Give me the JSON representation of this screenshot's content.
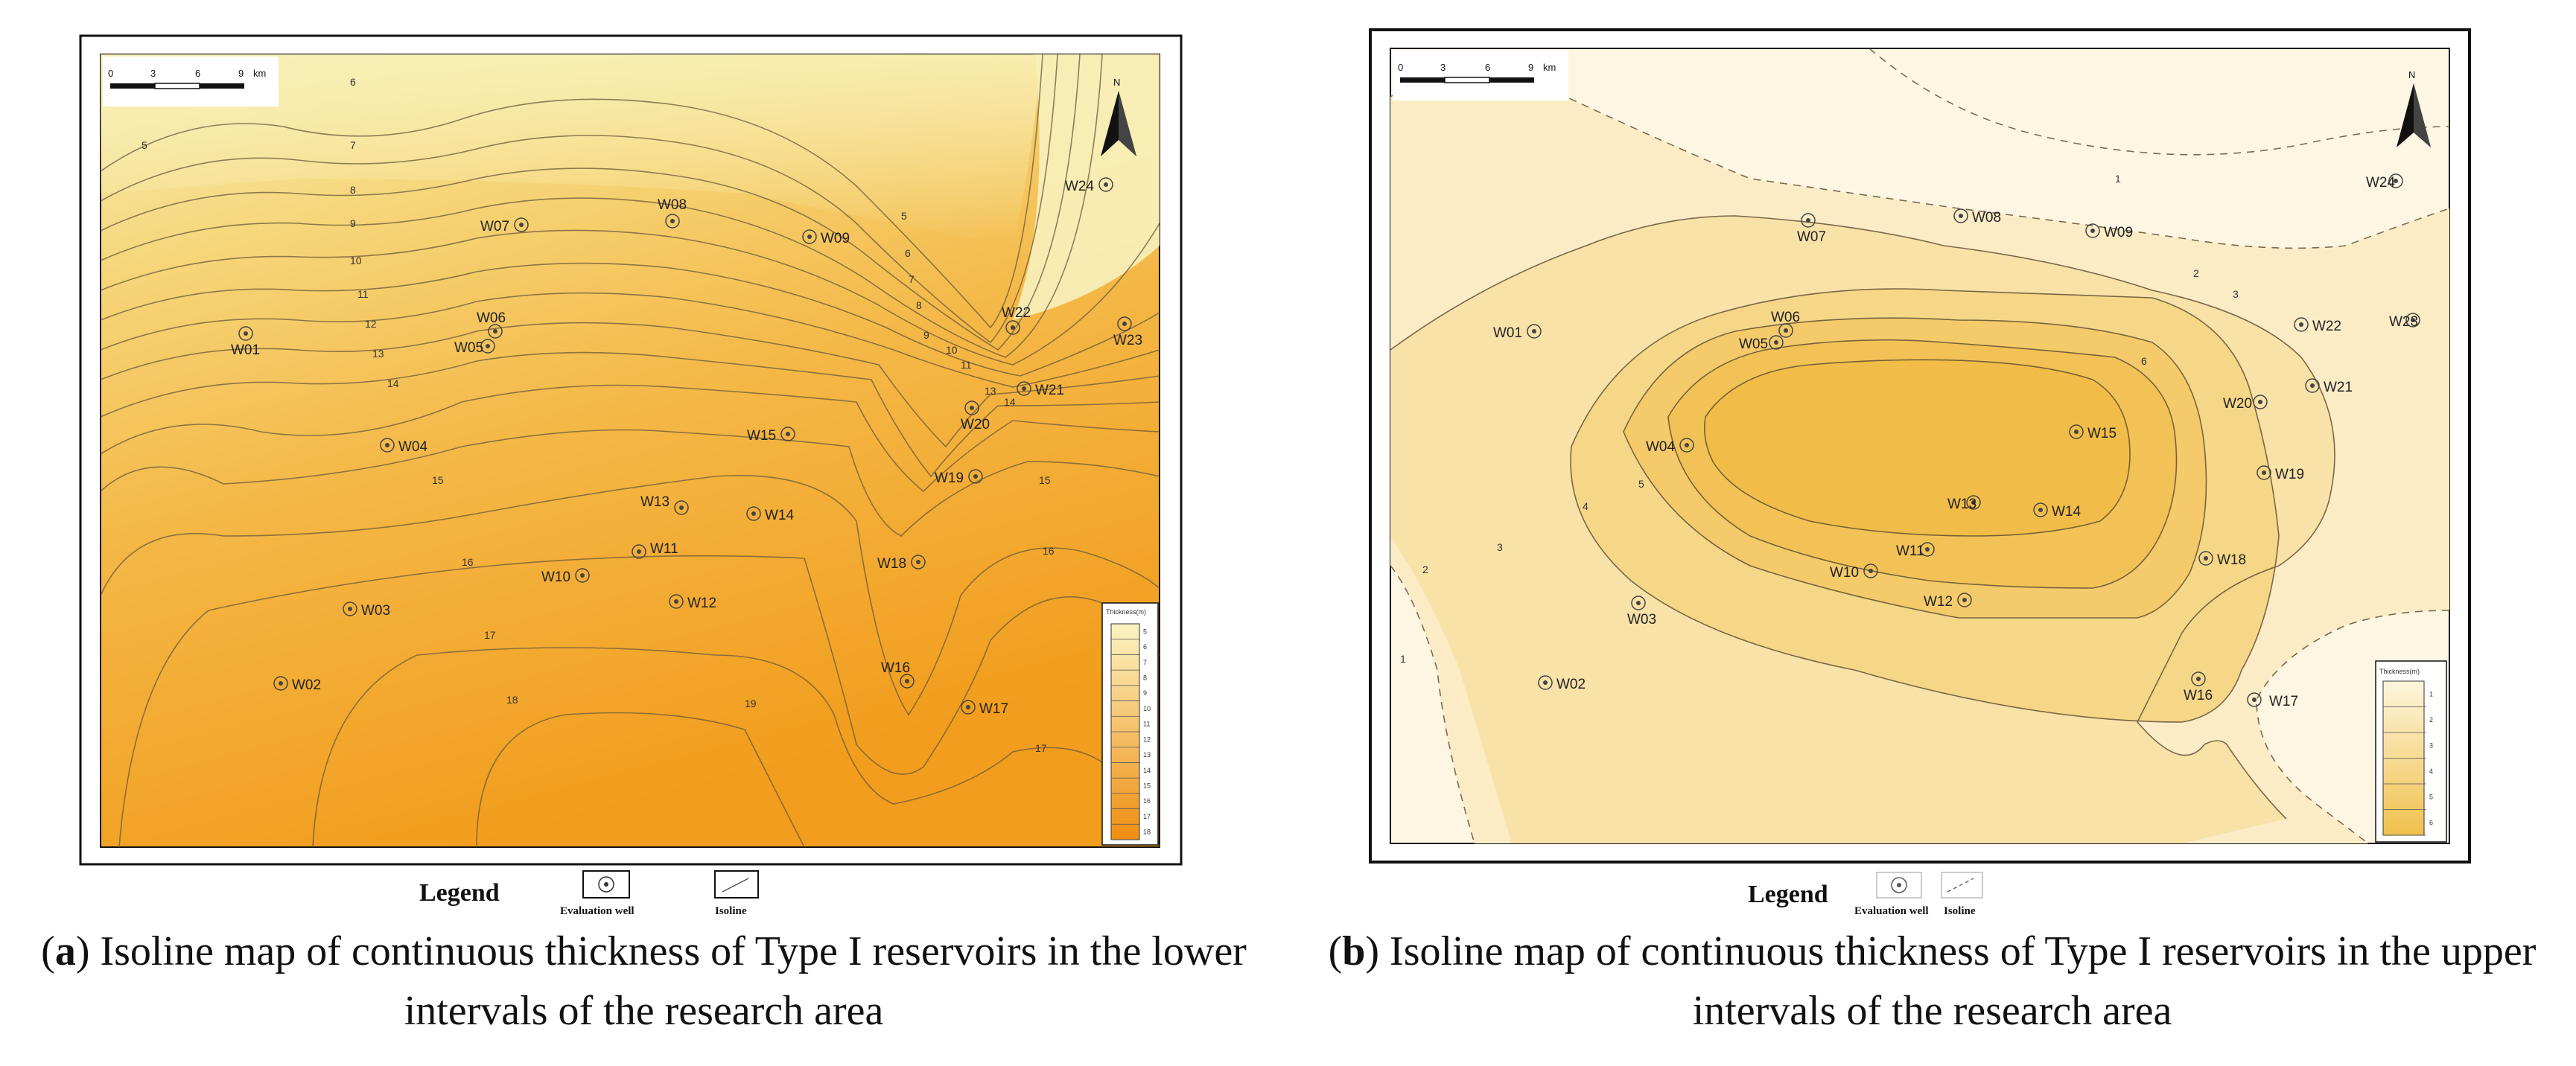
{
  "panels": [
    {
      "id": "a",
      "caption_letter": "a",
      "caption_text": ") Isoline map of continuous thickness of Type I reservoirs in the lower intervals of the research area",
      "caption_prefix": "(",
      "north": "N",
      "scale": [
        "0",
        "3",
        "6",
        "9",
        "km"
      ],
      "colorbar_title": "Thickness(m)",
      "colorbar_ticks": [
        "5",
        "6",
        "7",
        "8",
        "9",
        "10",
        "11",
        "12",
        "13",
        "14",
        "15",
        "16",
        "17",
        "18"
      ],
      "legend": {
        "title": "Legend",
        "well": "Evaluation well",
        "isoline": "Isoline"
      },
      "isoline_labels": [
        "5",
        "6",
        "7",
        "8",
        "9",
        "10",
        "11",
        "12",
        "13",
        "14",
        "15",
        "16",
        "17",
        "18",
        "19",
        "5",
        "6",
        "7",
        "8",
        "9",
        "10",
        "11",
        "13",
        "14",
        "15",
        "16",
        "17"
      ],
      "wells": [
        {
          "name": "W01"
        },
        {
          "name": "W02"
        },
        {
          "name": "W03"
        },
        {
          "name": "W04"
        },
        {
          "name": "W05"
        },
        {
          "name": "W06"
        },
        {
          "name": "W07"
        },
        {
          "name": "W08"
        },
        {
          "name": "W09"
        },
        {
          "name": "W10"
        },
        {
          "name": "W11"
        },
        {
          "name": "W12"
        },
        {
          "name": "W13"
        },
        {
          "name": "W14"
        },
        {
          "name": "W15"
        },
        {
          "name": "W16"
        },
        {
          "name": "W17"
        },
        {
          "name": "W18"
        },
        {
          "name": "W19"
        },
        {
          "name": "W20"
        },
        {
          "name": "W21"
        },
        {
          "name": "W22"
        },
        {
          "name": "W23"
        },
        {
          "name": "W24"
        }
      ]
    },
    {
      "id": "b",
      "caption_letter": "b",
      "caption_text": ") Isoline map of continuous thickness of Type I reservoirs in the upper intervals of the research area",
      "caption_prefix": "(",
      "north": "N",
      "scale": [
        "0",
        "3",
        "6",
        "9",
        "km"
      ],
      "colorbar_title": "Thickness(m)",
      "colorbar_ticks": [
        "1",
        "2",
        "3",
        "4",
        "5",
        "6"
      ],
      "legend": {
        "title": "Legend",
        "well": "Evaluation well",
        "isoline": "Isoline"
      },
      "isoline_labels": [
        "1",
        "2",
        "3",
        "4",
        "5",
        "6",
        "1",
        "2",
        "3"
      ],
      "wells": [
        {
          "name": "W01"
        },
        {
          "name": "W02"
        },
        {
          "name": "W03"
        },
        {
          "name": "W04"
        },
        {
          "name": "W05"
        },
        {
          "name": "W06"
        },
        {
          "name": "W07"
        },
        {
          "name": "W08"
        },
        {
          "name": "W09"
        },
        {
          "name": "W10"
        },
        {
          "name": "W11"
        },
        {
          "name": "W12"
        },
        {
          "name": "W13"
        },
        {
          "name": "W14"
        },
        {
          "name": "W15"
        },
        {
          "name": "W16"
        },
        {
          "name": "W17"
        },
        {
          "name": "W18"
        },
        {
          "name": "W19"
        },
        {
          "name": "W20"
        },
        {
          "name": "W21"
        },
        {
          "name": "W22"
        },
        {
          "name": "W23"
        },
        {
          "name": "W24"
        }
      ]
    }
  ],
  "colors": {
    "a_low": "#f7ecb0",
    "a_high": "#f4a020",
    "b_low": "#fdf6e0",
    "b_high": "#f2c75c"
  }
}
